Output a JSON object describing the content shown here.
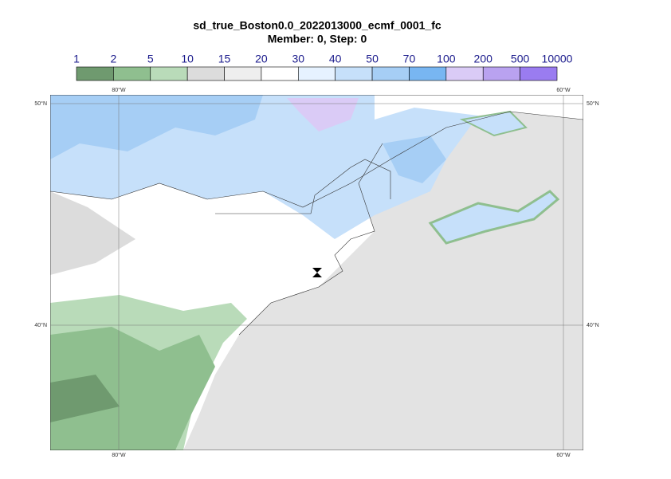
{
  "title": "sd_true_Boston0.0_2022013000_ecmf_0001_fc",
  "subtitle": "Member: 0, Step: 0",
  "colorbar": {
    "levels": [
      1,
      2,
      5,
      10,
      15,
      20,
      30,
      40,
      50,
      70,
      100,
      200,
      500,
      10000
    ],
    "colors": [
      "#6f9a6f",
      "#8fbf8f",
      "#b9dbb9",
      "#dcdcdc",
      "#eeeeee",
      "#ffffff",
      "#e6f2ff",
      "#c6e0fa",
      "#a6cef5",
      "#78b6f2",
      "#dacbf6",
      "#b9a2f0",
      "#9a7cf0"
    ]
  },
  "map": {
    "lon_labels": [
      "80°W",
      "60°W"
    ],
    "lat_labels": [
      "50°N",
      "40°N"
    ]
  }
}
